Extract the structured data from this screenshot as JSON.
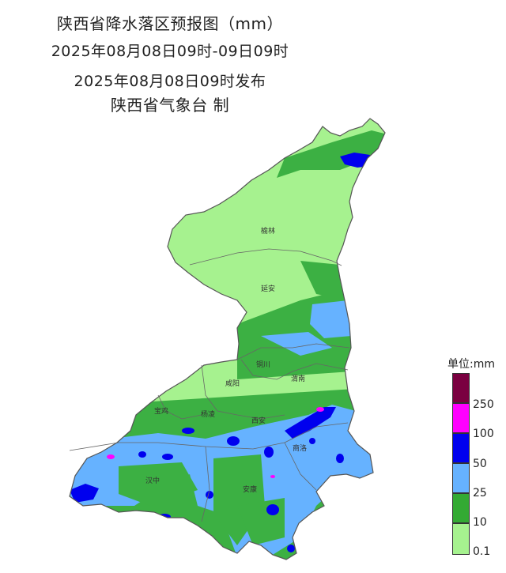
{
  "header": {
    "title": "陕西省降水落区预报图（mm）",
    "period": "2025年08月08日09时-09日09时",
    "issued": "2025年08月08日09时发布",
    "agency": "陕西省气象台 制"
  },
  "cities": [
    "榆林",
    "延安",
    "铜川",
    "咸阳",
    "渭南",
    "宝鸡",
    "杨凌",
    "西安",
    "商洛",
    "汉中",
    "安康"
  ],
  "legend": {
    "unit_label": "单位:mm",
    "levels": [
      {
        "label": "250",
        "color": "#7a0040"
      },
      {
        "label": "100",
        "color": "#ff00ff"
      },
      {
        "label": "50",
        "color": "#0000ee"
      },
      {
        "label": "25",
        "color": "#66b2ff"
      },
      {
        "label": "10",
        "color": "#33aa33"
      },
      {
        "label": "0.1",
        "color": "#a6f28f"
      }
    ]
  },
  "colors": {
    "light_green": "#a6f28f",
    "green": "#3cb043",
    "light_blue": "#66b2ff",
    "blue": "#0000ee",
    "magenta": "#ff00ff",
    "boundary": "#555555"
  }
}
